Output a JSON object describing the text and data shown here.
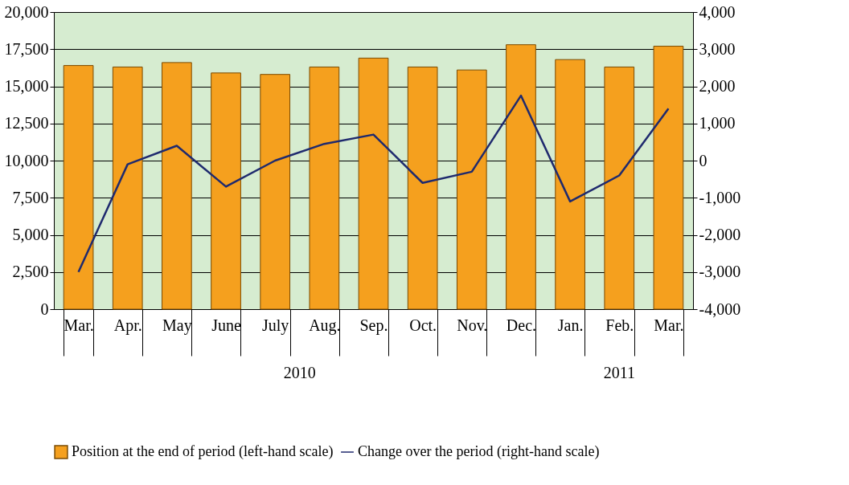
{
  "chart_data": {
    "type": "bar",
    "categories": [
      "Mar.",
      "Apr.",
      "May",
      "June",
      "July",
      "Aug.",
      "Sep.",
      "Oct.",
      "Nov.",
      "Dec.",
      "Jan.",
      "Feb.",
      "Mar."
    ],
    "series": [
      {
        "name": "Position at the end of period (left-hand scale)",
        "color": "#f5a01e",
        "values": [
          16400,
          16300,
          16600,
          15900,
          15800,
          16300,
          16900,
          16300,
          16100,
          17800,
          16800,
          16300,
          17700
        ]
      },
      {
        "name": "Change over the period (right-hand scale)",
        "type": "line",
        "axis": "y2",
        "color": "#1f2a6e",
        "values": [
          -3000,
          -100,
          400,
          -700,
          0,
          450,
          700,
          -600,
          -300,
          1750,
          -1100,
          -400,
          1400
        ]
      }
    ],
    "ylim": [
      0,
      20000
    ],
    "yticks": [
      0,
      {
        "value": 2500,
        "label": "2,500"
      },
      {
        "value": 5000,
        "label": "5,000"
      },
      {
        "value": 7500,
        "label": "7,500"
      },
      {
        "value": 10000,
        "label": "10,000"
      },
      {
        "value": 12500,
        "label": "12,500"
      },
      {
        "value": 15000,
        "label": "15,000"
      },
      {
        "value": 17500,
        "label": "17,500"
      },
      {
        "value": 20000,
        "label": "20,000"
      }
    ],
    "y2lim": [
      -4000,
      4000
    ],
    "y2ticks": [
      {
        "value": -4000,
        "label": "-4,000"
      },
      {
        "value": -3000,
        "label": "-3,000"
      },
      {
        "value": -2000,
        "label": "-2,000"
      },
      {
        "value": -1000,
        "label": "-1,000"
      },
      0,
      {
        "value": 1000,
        "label": "1,000"
      },
      {
        "value": 2000,
        "label": "2,000"
      },
      {
        "value": 3000,
        "label": "3,000"
      },
      {
        "value": 4000,
        "label": "4,000"
      }
    ],
    "annotations": [
      "2010",
      "2011"
    ],
    "grid": "y",
    "legend": "bottom",
    "marker": "none",
    "line_style": "solid"
  }
}
